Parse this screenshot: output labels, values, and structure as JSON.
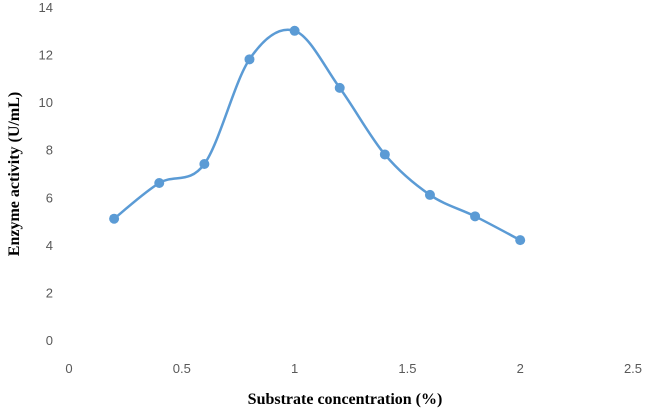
{
  "chart_data": {
    "type": "line",
    "smooth": true,
    "title": "",
    "xlabel": "Substrate concentration (%)",
    "ylabel": "Enzyme activity (U/mL)",
    "xlim": [
      0,
      2.5
    ],
    "ylim": [
      0,
      14
    ],
    "x_ticks": [
      "0",
      "0.5",
      "1",
      "1.5",
      "2",
      "2.5"
    ],
    "y_ticks": [
      "0",
      "2",
      "4",
      "6",
      "8",
      "10",
      "12",
      "14"
    ],
    "grid": false,
    "legend": "none",
    "series": [
      {
        "color": "#5b9bd5",
        "marker": "circle",
        "x": [
          0.2,
          0.4,
          0.6,
          0.8,
          1.0,
          1.2,
          1.4,
          1.6,
          1.8,
          2.0
        ],
        "y": [
          5.1,
          6.6,
          7.4,
          11.8,
          13.0,
          10.6,
          7.8,
          6.1,
          5.2,
          4.2
        ]
      }
    ]
  }
}
